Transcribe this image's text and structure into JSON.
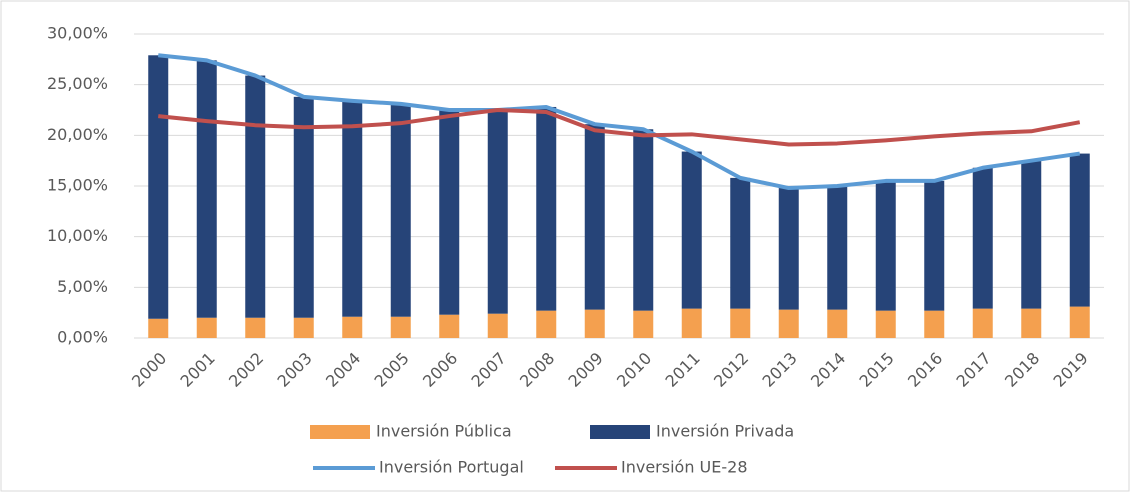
{
  "chart_data": {
    "type": "bar",
    "categories": [
      "2000",
      "2001",
      "2002",
      "2003",
      "2004",
      "2005",
      "2006",
      "2007",
      "2008",
      "2009",
      "2010",
      "2011",
      "2012",
      "2013",
      "2014",
      "2015",
      "2016",
      "2017",
      "2018",
      "2019"
    ],
    "series": [
      {
        "name": "Inversión Pública",
        "kind": "bar",
        "color": "#f4a04f",
        "values": [
          1.9,
          2.0,
          2.0,
          2.0,
          2.1,
          2.1,
          2.3,
          2.4,
          2.7,
          2.8,
          2.7,
          2.9,
          2.9,
          2.8,
          2.8,
          2.7,
          2.7,
          2.9,
          2.9,
          3.1
        ]
      },
      {
        "name": "Inversión Privada",
        "kind": "bar",
        "color": "#264478",
        "values": [
          26.0,
          25.4,
          23.9,
          21.8,
          21.3,
          21.0,
          20.2,
          20.1,
          20.1,
          18.3,
          17.9,
          15.5,
          12.9,
          12.0,
          12.2,
          12.8,
          12.8,
          13.9,
          14.6,
          15.1
        ]
      },
      {
        "name": "Inversión Portugal",
        "kind": "line",
        "color": "#5b9bd5",
        "values": [
          27.9,
          27.4,
          25.9,
          23.8,
          23.4,
          23.1,
          22.5,
          22.5,
          22.8,
          21.1,
          20.6,
          18.4,
          15.8,
          14.8,
          15.0,
          15.5,
          15.5,
          16.8,
          17.5,
          18.2
        ]
      },
      {
        "name": "Inversión UE-28",
        "kind": "line",
        "color": "#c0504d",
        "values": [
          21.9,
          21.4,
          21.0,
          20.8,
          20.9,
          21.2,
          21.9,
          22.5,
          22.3,
          20.5,
          20.0,
          20.1,
          19.6,
          19.1,
          19.2,
          19.5,
          19.9,
          20.2,
          20.4,
          21.3
        ]
      }
    ],
    "ylim": [
      0,
      30
    ],
    "yticks": [
      {
        "value": 0,
        "label": "0,00%"
      },
      {
        "value": 5,
        "label": "5,00%"
      },
      {
        "value": 10,
        "label": "10,00%"
      },
      {
        "value": 15,
        "label": "15,00%"
      },
      {
        "value": 20,
        "label": "20,00%"
      },
      {
        "value": 25,
        "label": "25,00%"
      },
      {
        "value": 30,
        "label": "30,00%"
      }
    ],
    "grid": true,
    "stacked": true
  }
}
